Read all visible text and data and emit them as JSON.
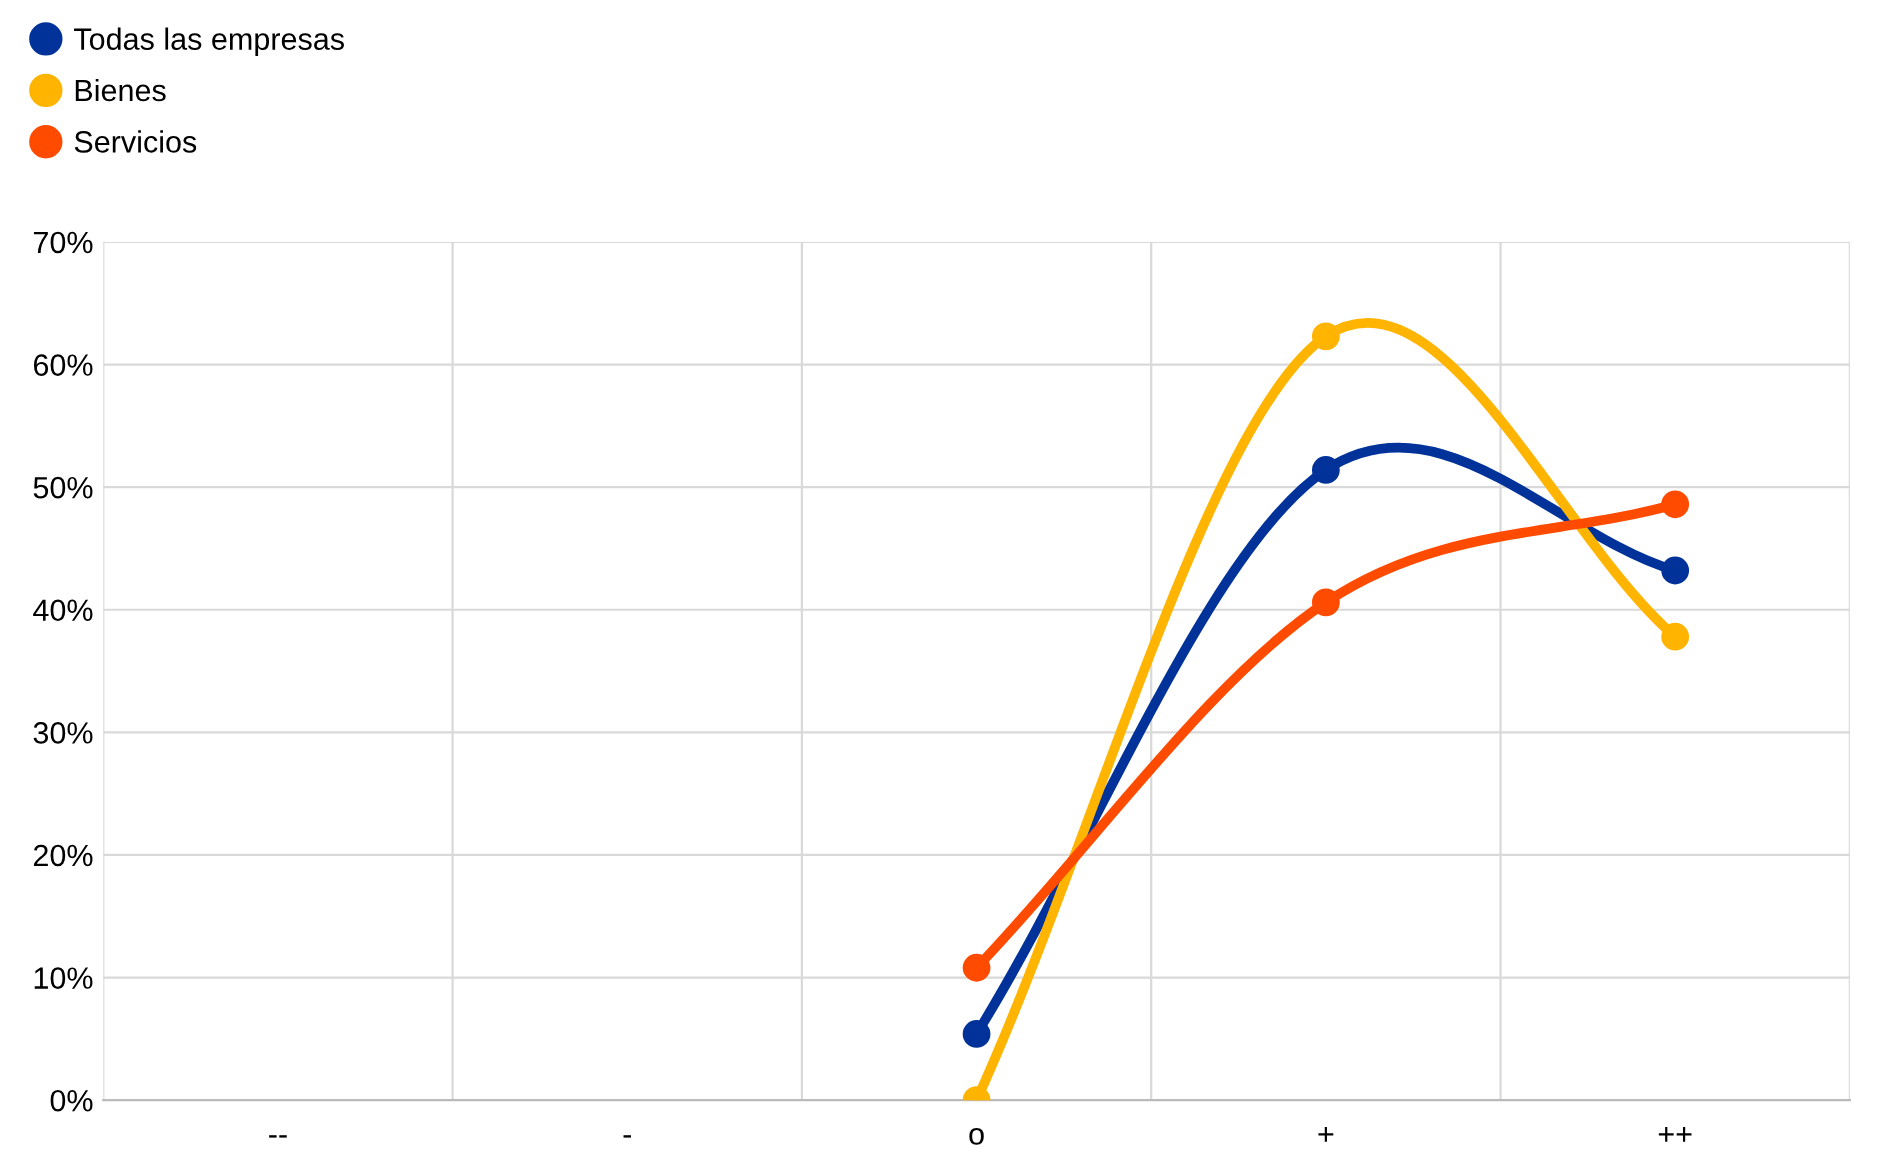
{
  "chart_data": {
    "type": "line",
    "categories": [
      "--",
      "-",
      "o",
      "+",
      "++"
    ],
    "series": [
      {
        "name": "Todas las empresas",
        "color": "#003299",
        "values": [
          null,
          null,
          5.4,
          51.4,
          43.2
        ]
      },
      {
        "name": "Bienes",
        "color": "#ffb400",
        "values": [
          null,
          null,
          0,
          62.3,
          37.8
        ]
      },
      {
        "name": "Servicios",
        "color": "#ff4b00",
        "values": [
          null,
          null,
          10.8,
          40.6,
          48.6
        ]
      }
    ],
    "ylim": [
      0,
      70
    ],
    "yticks": [
      {
        "value": 0,
        "label": "0%"
      },
      {
        "value": 10,
        "label": "10%"
      },
      {
        "value": 20,
        "label": "20%"
      },
      {
        "value": 30,
        "label": "30%"
      },
      {
        "value": 40,
        "label": "40%"
      },
      {
        "value": 50,
        "label": "50%"
      },
      {
        "value": 60,
        "label": "60%"
      },
      {
        "value": 70,
        "label": "70%"
      }
    ],
    "grid": true,
    "legend": "top left",
    "marker": "circle",
    "line_style": "solid"
  }
}
